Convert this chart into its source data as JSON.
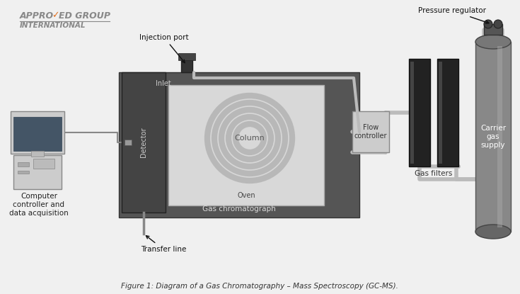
{
  "bg_color": "#f0f0f0",
  "title": "Figure 1: Diagram of a Gas Chromatography – Mass Spectroscopy (GC-MS).",
  "labels": {
    "injection_port": "Injection port",
    "inlet": "Inlet",
    "flow_controller": "Flow\ncontroller",
    "gas_filters": "Gas filters",
    "pressure_regulator": "Pressure regulator",
    "carrier_gas": "Carrier\ngas\nsupply",
    "column": "Column",
    "oven": "Oven",
    "gas_chromatograph": "Gas chromatograph",
    "detector": "Detector",
    "transfer_line": "Transfer line",
    "computer": "Computer\ncontroller and\ndata acquisition"
  },
  "colors": {
    "dark_gray": "#555555",
    "medium_gray": "#888888",
    "light_gray": "#cccccc",
    "oven_bg": "#d8d8d8",
    "column_color": "#999999",
    "pipe_color": "#bbbbbb",
    "filter_black": "#222222",
    "orange": "#e07020",
    "white": "#ffffff"
  }
}
